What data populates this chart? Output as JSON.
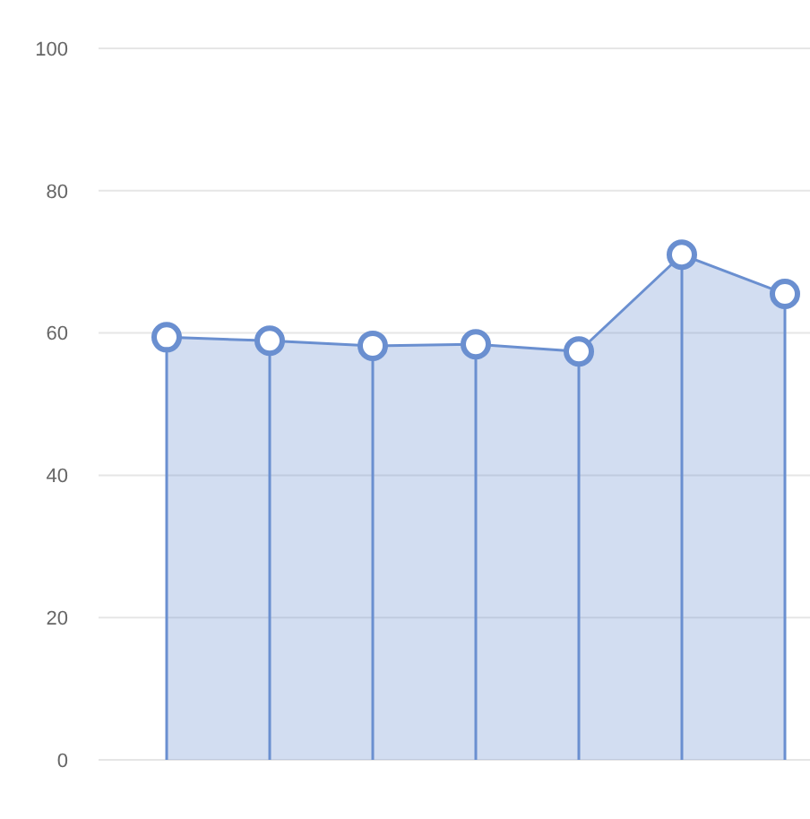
{
  "chart_data": {
    "type": "area",
    "categories": [
      null,
      null,
      null,
      null,
      null,
      null,
      null
    ],
    "series": [
      {
        "color": "#6a8fd0",
        "values": [
          59.4,
          58.9,
          58.2,
          58.4,
          57.4,
          71,
          65.5
        ]
      }
    ],
    "ylim": [
      0,
      100
    ],
    "yticks": [
      0,
      20,
      40,
      60,
      80,
      100
    ],
    "grid": "y",
    "marker": "circle"
  }
}
